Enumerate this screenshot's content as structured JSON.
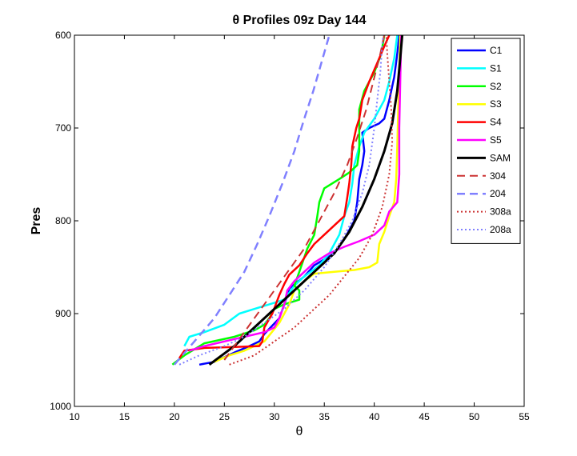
{
  "chart_data": {
    "type": "line",
    "title": "θ Profiles 09z Day 144",
    "xlabel": "θ",
    "ylabel": "Pres",
    "xlim": [
      10,
      55
    ],
    "ylim": [
      600,
      1000
    ],
    "y_reversed": true,
    "grid": false,
    "legend_position": "top-right",
    "xticks": [
      "10",
      "15",
      "20",
      "25",
      "30",
      "35",
      "40",
      "45",
      "50",
      "55"
    ],
    "yticks": [
      "600",
      "700",
      "800",
      "900",
      "1000"
    ],
    "series": [
      {
        "name": "C1",
        "color": "#0000ff",
        "dash": "solid",
        "width": 2.5,
        "points": [
          [
            22.5,
            955
          ],
          [
            24,
            952
          ],
          [
            26,
            942
          ],
          [
            27.5,
            935
          ],
          [
            28.5,
            930
          ],
          [
            29,
            922
          ],
          [
            30.5,
            905
          ],
          [
            31,
            890
          ],
          [
            31.5,
            873
          ],
          [
            33,
            860
          ],
          [
            34,
            848
          ],
          [
            36,
            835
          ],
          [
            37,
            820
          ],
          [
            38,
            800
          ],
          [
            38.3,
            780
          ],
          [
            38.5,
            755
          ],
          [
            38.8,
            740
          ],
          [
            39,
            725
          ],
          [
            38.8,
            705
          ],
          [
            39.5,
            700
          ],
          [
            40.5,
            695
          ],
          [
            41,
            690
          ],
          [
            41.5,
            670
          ],
          [
            42,
            645
          ],
          [
            42.3,
            620
          ],
          [
            42.5,
            600
          ]
        ]
      },
      {
        "name": "S1",
        "color": "#00ffff",
        "dash": "solid",
        "width": 2.5,
        "points": [
          [
            21,
            935
          ],
          [
            21.5,
            925
          ],
          [
            23,
            920
          ],
          [
            25,
            912
          ],
          [
            26.5,
            900
          ],
          [
            28,
            895
          ],
          [
            29.5,
            890
          ],
          [
            31,
            885
          ],
          [
            32,
            870
          ],
          [
            33,
            860
          ],
          [
            34.5,
            848
          ],
          [
            35.5,
            835
          ],
          [
            36.5,
            815
          ],
          [
            37,
            795
          ],
          [
            37.5,
            780
          ],
          [
            37.8,
            760
          ],
          [
            38,
            740
          ],
          [
            38.5,
            720
          ],
          [
            39,
            705
          ],
          [
            40,
            690
          ],
          [
            41,
            670
          ],
          [
            41.5,
            650
          ],
          [
            42,
            625
          ],
          [
            42.3,
            600
          ]
        ]
      },
      {
        "name": "S2",
        "color": "#00ff00",
        "dash": "solid",
        "width": 2.5,
        "points": [
          [
            19.8,
            955
          ],
          [
            21,
            945
          ],
          [
            23,
            932
          ],
          [
            26,
            925
          ],
          [
            28,
            918
          ],
          [
            29,
            912
          ],
          [
            29.5,
            905
          ],
          [
            30,
            895
          ],
          [
            31,
            890
          ],
          [
            32.5,
            885
          ],
          [
            32.5,
            875
          ],
          [
            32,
            870
          ],
          [
            32.5,
            855
          ],
          [
            33.3,
            830
          ],
          [
            34,
            815
          ],
          [
            34.3,
            795
          ],
          [
            34.5,
            780
          ],
          [
            35,
            765
          ],
          [
            36.5,
            755
          ],
          [
            37.5,
            748
          ],
          [
            38.3,
            740
          ],
          [
            38.5,
            725
          ],
          [
            38.5,
            700
          ],
          [
            38.5,
            680
          ],
          [
            39,
            660
          ],
          [
            40,
            640
          ],
          [
            40.7,
            620
          ],
          [
            41,
            600
          ]
        ]
      },
      {
        "name": "S3",
        "color": "#ffff00",
        "dash": "solid",
        "width": 2.5,
        "points": [
          [
            24,
            952
          ],
          [
            25.5,
            945
          ],
          [
            27,
            940
          ],
          [
            28,
            935
          ],
          [
            29,
            930
          ],
          [
            30.5,
            910
          ],
          [
            31.5,
            890
          ],
          [
            32,
            875
          ],
          [
            33,
            865
          ],
          [
            34,
            857
          ],
          [
            36,
            855
          ],
          [
            38,
            853
          ],
          [
            39.5,
            850
          ],
          [
            40.3,
            845
          ],
          [
            40.5,
            825
          ],
          [
            41,
            812
          ],
          [
            41.5,
            795
          ],
          [
            42,
            780
          ],
          [
            42.2,
            755
          ],
          [
            42.3,
            720
          ],
          [
            42.4,
            680
          ],
          [
            42.5,
            640
          ],
          [
            42.6,
            600
          ]
        ]
      },
      {
        "name": "S4",
        "color": "#ff0000",
        "dash": "solid",
        "width": 2.5,
        "points": [
          [
            20.5,
            948
          ],
          [
            21,
            940
          ],
          [
            23,
            937
          ],
          [
            26,
            936
          ],
          [
            28.5,
            935
          ],
          [
            28.8,
            930
          ],
          [
            29,
            915
          ],
          [
            29.8,
            900
          ],
          [
            30.5,
            880
          ],
          [
            31,
            868
          ],
          [
            31.5,
            858
          ],
          [
            32.5,
            848
          ],
          [
            33.3,
            835
          ],
          [
            34,
            825
          ],
          [
            35,
            815
          ],
          [
            36,
            805
          ],
          [
            37,
            795
          ],
          [
            37.3,
            775
          ],
          [
            37.5,
            760
          ],
          [
            37.7,
            740
          ],
          [
            37.8,
            720
          ],
          [
            38.2,
            700
          ],
          [
            38.5,
            690
          ],
          [
            38.8,
            670
          ],
          [
            39.5,
            650
          ],
          [
            40.3,
            630
          ],
          [
            41,
            612
          ],
          [
            41.5,
            600
          ]
        ]
      },
      {
        "name": "S5",
        "color": "#ff00ff",
        "dash": "solid",
        "width": 2.5,
        "points": [
          [
            21.5,
            940
          ],
          [
            23,
            935
          ],
          [
            25,
            930
          ],
          [
            27,
            925
          ],
          [
            29,
            920
          ],
          [
            30,
            915
          ],
          [
            30.5,
            905
          ],
          [
            31,
            890
          ],
          [
            31.3,
            875
          ],
          [
            32,
            865
          ],
          [
            33,
            855
          ],
          [
            34,
            845
          ],
          [
            35.5,
            835
          ],
          [
            37,
            828
          ],
          [
            38.5,
            822
          ],
          [
            40,
            815
          ],
          [
            41,
            805
          ],
          [
            41.5,
            790
          ],
          [
            42.3,
            780
          ],
          [
            42.5,
            750
          ],
          [
            42.5,
            700
          ],
          [
            42.6,
            650
          ],
          [
            42.7,
            600
          ]
        ]
      },
      {
        "name": "SAM",
        "color": "#000000",
        "dash": "solid",
        "width": 3,
        "points": [
          [
            23.5,
            955
          ],
          [
            26,
            935
          ],
          [
            28,
            915
          ],
          [
            30,
            895
          ],
          [
            32,
            875
          ],
          [
            34,
            855
          ],
          [
            36,
            835
          ],
          [
            37.5,
            812
          ],
          [
            38.8,
            785
          ],
          [
            40,
            755
          ],
          [
            41,
            725
          ],
          [
            41.8,
            695
          ],
          [
            42.3,
            660
          ],
          [
            42.6,
            625
          ],
          [
            42.8,
            600
          ]
        ]
      },
      {
        "name": "304",
        "color": "#cc3333",
        "dash": "dashed",
        "width": 2,
        "points": [
          [
            25,
            950
          ],
          [
            27,
            920
          ],
          [
            29,
            890
          ],
          [
            31,
            860
          ],
          [
            33,
            830
          ],
          [
            34.5,
            800
          ],
          [
            36,
            770
          ],
          [
            37.3,
            740
          ],
          [
            38.3,
            710
          ],
          [
            39.2,
            680
          ],
          [
            39.9,
            650
          ],
          [
            40.6,
            620
          ],
          [
            41,
            600
          ]
        ]
      },
      {
        "name": "204",
        "color": "#8080ff",
        "dash": "dashed",
        "width": 2.5,
        "points": [
          [
            20,
            955
          ],
          [
            22,
            930
          ],
          [
            24,
            905
          ],
          [
            25.5,
            880
          ],
          [
            27,
            855
          ],
          [
            28.3,
            825
          ],
          [
            29.5,
            795
          ],
          [
            30.8,
            760
          ],
          [
            32,
            725
          ],
          [
            33,
            690
          ],
          [
            33.9,
            660
          ],
          [
            34.7,
            630
          ],
          [
            35.5,
            600
          ]
        ]
      },
      {
        "name": "308a",
        "color": "#cc3333",
        "dash": "dotted",
        "width": 2,
        "points": [
          [
            25.5,
            955
          ],
          [
            28,
            945
          ],
          [
            30,
            930
          ],
          [
            32,
            915
          ],
          [
            34,
            895
          ],
          [
            35.5,
            880
          ],
          [
            37,
            860
          ],
          [
            38.5,
            840
          ],
          [
            39.8,
            815
          ],
          [
            40.8,
            785
          ],
          [
            41.5,
            750
          ],
          [
            41.8,
            715
          ],
          [
            41.7,
            680
          ],
          [
            41.5,
            650
          ],
          [
            41.3,
            620
          ],
          [
            41.2,
            600
          ]
        ]
      },
      {
        "name": "208a",
        "color": "#8080ff",
        "dash": "dotted",
        "width": 2,
        "points": [
          [
            20.5,
            955
          ],
          [
            22.5,
            945
          ],
          [
            25,
            935
          ],
          [
            27,
            925
          ],
          [
            29,
            910
          ],
          [
            31,
            895
          ],
          [
            33,
            875
          ],
          [
            35,
            850
          ],
          [
            36.5,
            825
          ],
          [
            37.8,
            800
          ],
          [
            38.8,
            770
          ],
          [
            39.5,
            740
          ],
          [
            40,
            700
          ],
          [
            40.3,
            670
          ],
          [
            40.6,
            640
          ],
          [
            40.8,
            610
          ],
          [
            40.9,
            600
          ]
        ]
      }
    ]
  }
}
